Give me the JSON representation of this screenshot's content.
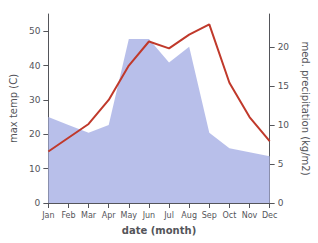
{
  "chart_data": {
    "type": "line",
    "categories": [
      "Jan",
      "Feb",
      "Mar",
      "Apr",
      "May",
      "Jun",
      "Jul",
      "Aug",
      "Sep",
      "Oct",
      "Nov",
      "Dec"
    ],
    "xlabel": "date (month)",
    "ylabel": "max temp (C)",
    "y2label": "med. precipitation (kg/m2)",
    "series": [
      {
        "type": "area",
        "color": "#b0b8e8",
        "axis": "y2",
        "values": [
          11,
          10,
          9,
          10,
          21,
          21,
          18,
          20,
          9,
          7,
          6.5,
          6
        ]
      },
      {
        "type": "line",
        "color": "#c0392b",
        "values": [
          15,
          19,
          23,
          30,
          40,
          47,
          45,
          49,
          52,
          35,
          25,
          18
        ]
      }
    ],
    "ylim": [
      0,
      55
    ],
    "yticks": [
      0,
      10,
      20,
      30,
      40,
      50
    ],
    "y2lim": [
      0,
      24.2
    ],
    "y2ticks": [
      0,
      5,
      10,
      15,
      20
    ],
    "grid": false
  }
}
